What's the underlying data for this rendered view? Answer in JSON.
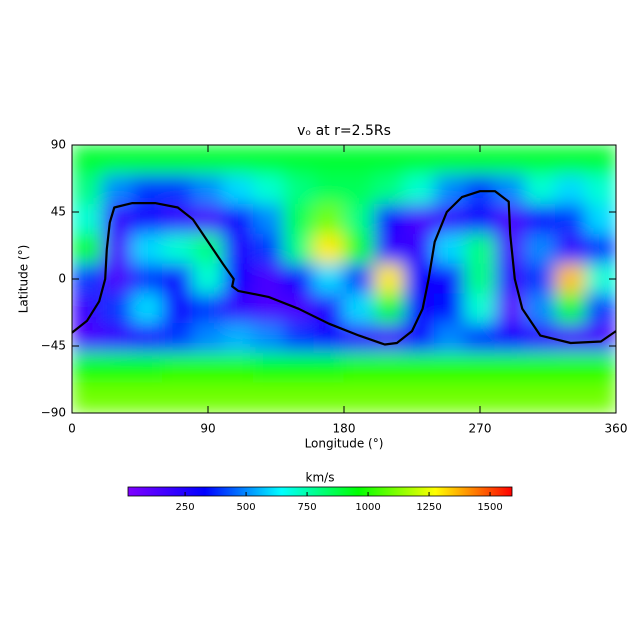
{
  "chart_data": {
    "type": "heatmap",
    "title": "vₒ at r=2.5Rs",
    "xlabel": "Longitude (°)",
    "ylabel": "Latitude (°)",
    "xlim": [
      0,
      360
    ],
    "ylim": [
      -90,
      90
    ],
    "xticks": [
      0,
      90,
      180,
      270,
      360
    ],
    "yticks": [
      {
        "value": -90,
        "label": "−90"
      },
      {
        "value": -45,
        "label": "−45"
      },
      0,
      45,
      90
    ],
    "x": [
      10,
      30,
      50,
      70,
      90,
      110,
      130,
      150,
      170,
      190,
      210,
      230,
      250,
      270,
      290,
      310,
      330,
      350
    ],
    "y": [
      80,
      60,
      40,
      20,
      0,
      -20,
      -40,
      -60,
      -80
    ],
    "z": [
      [
        900,
        900,
        900,
        900,
        900,
        900,
        900,
        900,
        900,
        900,
        900,
        900,
        900,
        900,
        900,
        900,
        900,
        900
      ],
      [
        800,
        500,
        400,
        400,
        500,
        600,
        700,
        800,
        850,
        850,
        800,
        700,
        500,
        400,
        500,
        700,
        600,
        700
      ],
      [
        700,
        200,
        300,
        200,
        150,
        300,
        500,
        850,
        1100,
        800,
        300,
        150,
        200,
        300,
        150,
        300,
        400,
        600
      ],
      [
        900,
        150,
        600,
        700,
        800,
        250,
        400,
        800,
        1300,
        900,
        200,
        200,
        600,
        800,
        150,
        500,
        200,
        400
      ],
      [
        400,
        150,
        400,
        300,
        700,
        300,
        150,
        300,
        600,
        400,
        1300,
        300,
        300,
        800,
        200,
        400,
        1350,
        700
      ],
      [
        200,
        400,
        600,
        300,
        400,
        200,
        150,
        150,
        250,
        600,
        900,
        300,
        350,
        700,
        100,
        500,
        900,
        400
      ],
      [
        150,
        200,
        250,
        400,
        500,
        550,
        500,
        400,
        300,
        200,
        150,
        300,
        500,
        400,
        300,
        200,
        150,
        150
      ],
      [
        950,
        950,
        950,
        1000,
        1000,
        1000,
        950,
        950,
        950,
        1000,
        1000,
        1000,
        1000,
        1000,
        1000,
        1000,
        1000,
        1000
      ],
      [
        1100,
        1100,
        1100,
        1100,
        1100,
        1100,
        1100,
        1100,
        1100,
        1100,
        1100,
        1100,
        1100,
        1100,
        1100,
        1100,
        1100,
        1100
      ]
    ],
    "colormap": [
      "#7f00ff",
      "#0000ff",
      "#00ffff",
      "#00ff00",
      "#ffff00",
      "#ff0000"
    ],
    "colorbar": {
      "label": "km/s",
      "lim": [
        16,
        1590
      ],
      "ticks": [
        250,
        500,
        750,
        1000,
        1250,
        1500
      ]
    },
    "contour": {
      "color": "#000000",
      "x": [
        0,
        10,
        18,
        22,
        23,
        25,
        28,
        40,
        55,
        70,
        80,
        90,
        100,
        107,
        106,
        110,
        130,
        150,
        170,
        190,
        207,
        215,
        225,
        232,
        236,
        240,
        248,
        258,
        270,
        280,
        289,
        290,
        293,
        298,
        310,
        330,
        350,
        360
      ],
      "y": [
        -36,
        -28,
        -15,
        0,
        20,
        38,
        48,
        51,
        51,
        48,
        40,
        25,
        10,
        0,
        -5,
        -8,
        -12,
        -20,
        -30,
        -38,
        -44,
        -43,
        -35,
        -20,
        0,
        25,
        45,
        55,
        59,
        59,
        52,
        30,
        0,
        -20,
        -38,
        -43,
        -42,
        -35
      ]
    }
  }
}
